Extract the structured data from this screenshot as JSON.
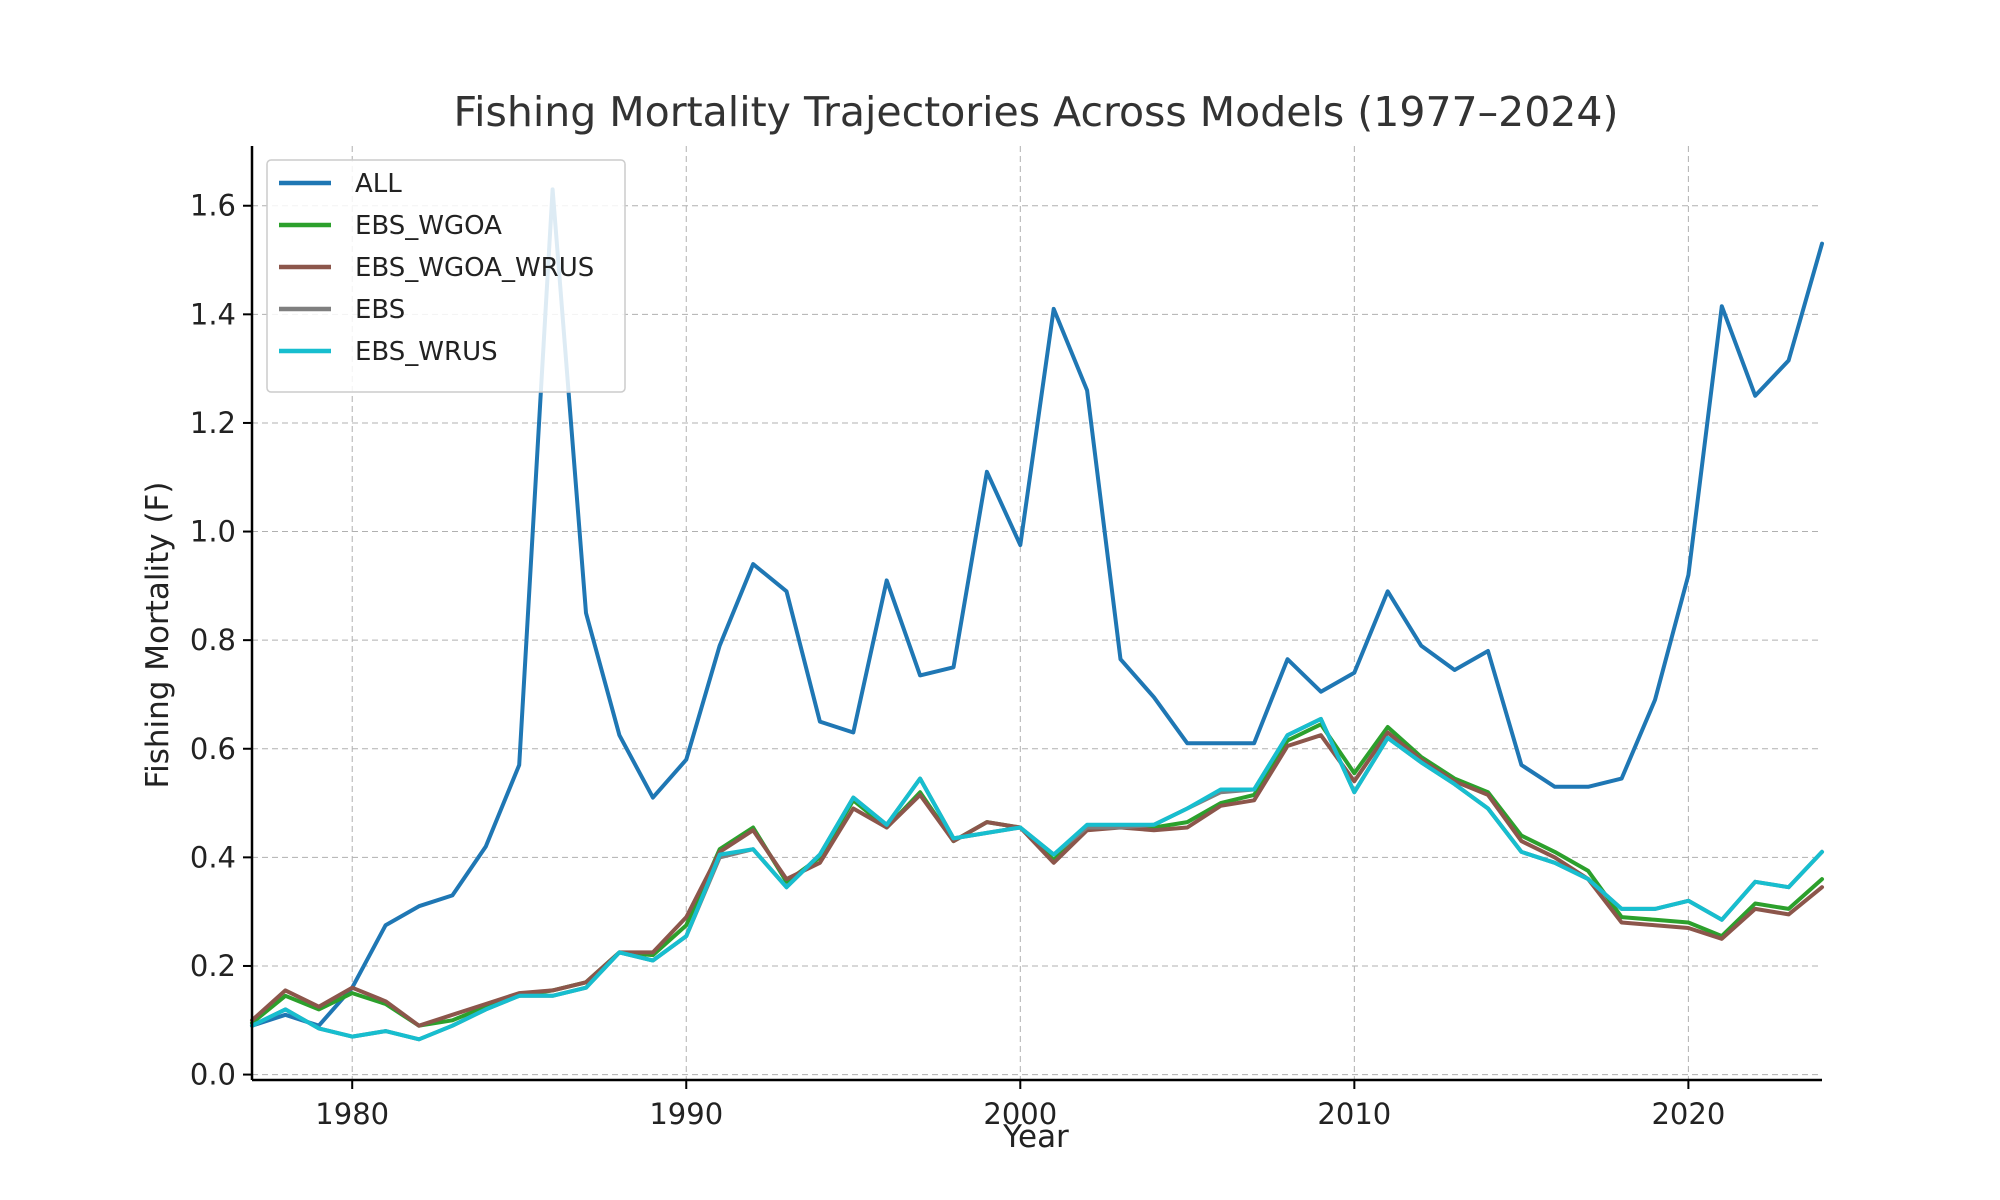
{
  "chart_data": {
    "type": "line",
    "title": "Fishing Mortality Trajectories Across Models (1977–2024)",
    "xlabel": "Year",
    "ylabel": "Fishing Mortality (F)",
    "xlim": [
      1977,
      2024
    ],
    "ylim": [
      -0.01,
      1.71
    ],
    "xticks": [
      "1980",
      "1990",
      "2000",
      "2010",
      "2020"
    ],
    "yticks": [
      "0.0",
      "0.2",
      "0.4",
      "0.6",
      "0.8",
      "1.0",
      "1.2",
      "1.4",
      "1.6"
    ],
    "grid": true,
    "legend_position": "upper-left",
    "x": [
      1977,
      1978,
      1979,
      1980,
      1981,
      1982,
      1983,
      1984,
      1985,
      1986,
      1987,
      1988,
      1989,
      1990,
      1991,
      1992,
      1993,
      1994,
      1995,
      1996,
      1997,
      1998,
      1999,
      2000,
      2001,
      2002,
      2003,
      2004,
      2005,
      2006,
      2007,
      2008,
      2009,
      2010,
      2011,
      2012,
      2013,
      2014,
      2015,
      2016,
      2017,
      2018,
      2019,
      2020,
      2021,
      2022,
      2023,
      2024
    ],
    "series": [
      {
        "name": "ALL",
        "color": "#1f77b4",
        "values": [
          0.09,
          0.11,
          0.09,
          0.16,
          0.275,
          0.31,
          0.33,
          0.42,
          0.57,
          1.63,
          0.85,
          0.625,
          0.51,
          0.58,
          0.79,
          0.94,
          0.89,
          0.65,
          0.63,
          0.91,
          0.735,
          0.75,
          1.11,
          0.975,
          1.41,
          1.26,
          0.765,
          0.695,
          0.61,
          0.61,
          0.61,
          0.765,
          0.705,
          0.74,
          0.89,
          0.79,
          0.745,
          0.78,
          0.57,
          0.53,
          0.53,
          0.545,
          0.69,
          0.92,
          1.415,
          1.25,
          1.315,
          1.53
        ]
      },
      {
        "name": "EBS_WGOA",
        "color": "#2ca02c",
        "values": [
          0.095,
          0.145,
          0.12,
          0.15,
          0.13,
          0.09,
          0.1,
          0.125,
          0.145,
          0.155,
          0.17,
          0.225,
          0.22,
          0.275,
          0.415,
          0.455,
          0.355,
          0.4,
          0.505,
          0.455,
          0.52,
          0.43,
          0.465,
          0.455,
          0.395,
          0.455,
          0.455,
          0.455,
          0.465,
          0.5,
          0.515,
          0.615,
          0.645,
          0.555,
          0.64,
          0.585,
          0.545,
          0.52,
          0.44,
          0.41,
          0.375,
          0.29,
          0.285,
          0.28,
          0.255,
          0.315,
          0.305,
          0.36
        ]
      },
      {
        "name": "EBS_WGOA_WRUS",
        "color": "#8c564b",
        "values": [
          0.1,
          0.155,
          0.125,
          0.16,
          0.135,
          0.09,
          0.11,
          0.13,
          0.15,
          0.155,
          0.17,
          0.225,
          0.225,
          0.29,
          0.41,
          0.45,
          0.36,
          0.39,
          0.49,
          0.455,
          0.515,
          0.43,
          0.465,
          0.455,
          0.39,
          0.45,
          0.455,
          0.45,
          0.455,
          0.495,
          0.505,
          0.605,
          0.625,
          0.54,
          0.63,
          0.58,
          0.54,
          0.515,
          0.43,
          0.4,
          0.36,
          0.28,
          0.275,
          0.27,
          0.25,
          0.305,
          0.295,
          0.345
        ]
      },
      {
        "name": "EBS",
        "color": "#7f7f7f",
        "values": [
          0.09,
          0.12,
          0.085,
          0.07,
          0.08,
          0.065,
          0.09,
          0.12,
          0.145,
          0.145,
          0.16,
          0.225,
          0.21,
          0.255,
          0.4,
          0.415,
          0.345,
          0.405,
          0.51,
          0.46,
          0.545,
          0.435,
          0.445,
          0.455,
          0.405,
          0.455,
          0.455,
          0.46,
          0.49,
          0.52,
          0.525,
          0.625,
          0.655,
          0.52,
          0.62,
          0.575,
          0.535,
          0.49,
          0.41,
          0.39,
          0.36,
          0.305,
          0.305,
          0.32,
          0.285,
          0.355,
          0.345,
          0.41
        ]
      },
      {
        "name": "EBS_WRUS",
        "color": "#17becf",
        "values": [
          0.09,
          0.12,
          0.085,
          0.07,
          0.08,
          0.065,
          0.09,
          0.12,
          0.145,
          0.145,
          0.16,
          0.225,
          0.21,
          0.255,
          0.405,
          0.415,
          0.345,
          0.405,
          0.51,
          0.46,
          0.545,
          0.435,
          0.445,
          0.455,
          0.405,
          0.46,
          0.46,
          0.46,
          0.49,
          0.525,
          0.525,
          0.625,
          0.655,
          0.52,
          0.62,
          0.575,
          0.535,
          0.49,
          0.41,
          0.39,
          0.36,
          0.305,
          0.305,
          0.32,
          0.285,
          0.355,
          0.345,
          0.41
        ]
      }
    ]
  }
}
